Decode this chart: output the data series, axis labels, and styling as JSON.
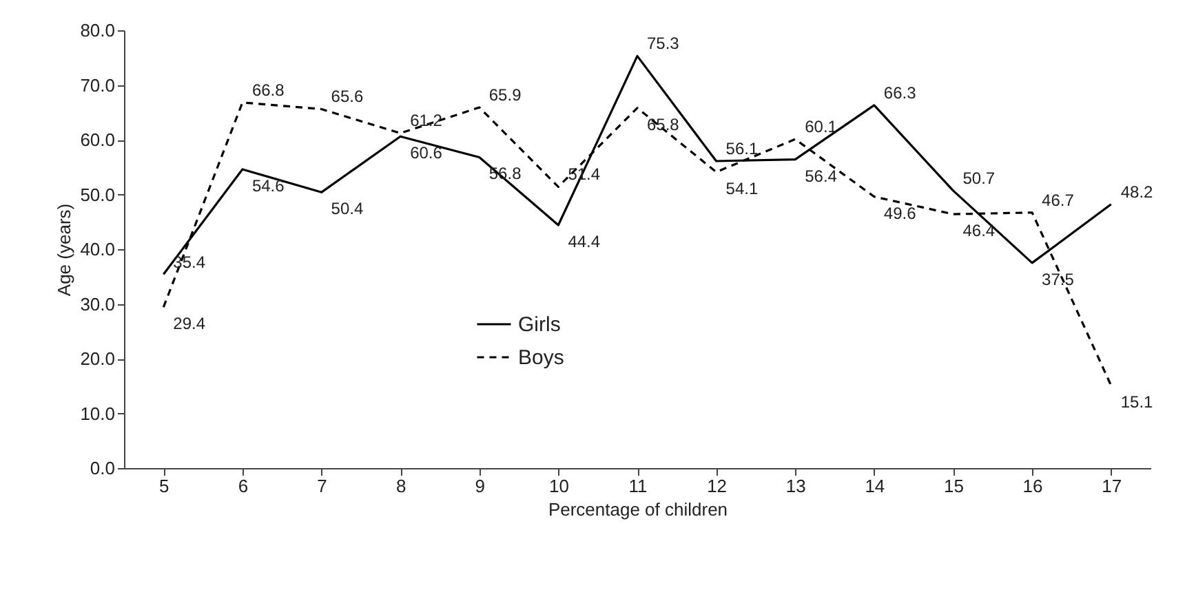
{
  "chart_data": {
    "type": "line",
    "xlabel": "Percentage of children",
    "ylabel": "Age (years)",
    "categories": [
      "5",
      "6",
      "7",
      "8",
      "9",
      "10",
      "11",
      "12",
      "13",
      "14",
      "15",
      "16",
      "17"
    ],
    "series": [
      {
        "name": "Girls",
        "color": "#000000",
        "line_style": "solid",
        "values": [
          35.4,
          54.6,
          50.4,
          60.6,
          56.8,
          44.4,
          75.3,
          56.1,
          56.4,
          66.3,
          50.7,
          37.5,
          48.2
        ]
      },
      {
        "name": "Boys",
        "color": "#000000",
        "line_style": "dashed",
        "values": [
          29.4,
          66.8,
          65.6,
          61.2,
          65.9,
          51.4,
          65.8,
          54.1,
          60.1,
          49.6,
          46.4,
          46.7,
          15.1
        ]
      }
    ],
    "ylim": [
      0,
      80
    ],
    "yticks": [
      {
        "value": 0,
        "label": "0.0"
      },
      {
        "value": 10,
        "label": "10.0"
      },
      {
        "value": 20,
        "label": "20.0"
      },
      {
        "value": 30,
        "label": "30.0"
      },
      {
        "value": 40,
        "label": "40.0"
      },
      {
        "value": 50,
        "label": "50.0"
      },
      {
        "value": 60,
        "label": "60.0"
      },
      {
        "value": 70,
        "label": "70.0"
      },
      {
        "value": 80,
        "label": "80.0"
      }
    ],
    "data_labels": true,
    "grid": false,
    "legend": "bottom",
    "marker": "none"
  }
}
